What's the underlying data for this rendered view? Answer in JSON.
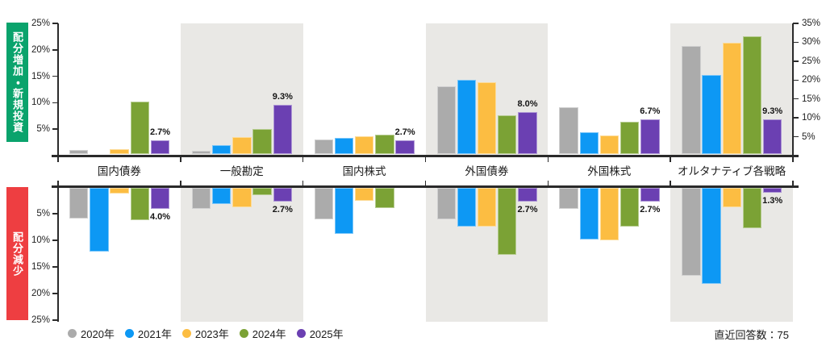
{
  "labels": {
    "increase": "配分増加・新規投資",
    "decrease": "配分減少"
  },
  "note": "直近回答数：75",
  "chart_data": {
    "type": "bar",
    "title": "",
    "panels": [
      {
        "id": "increase",
        "label": "配分増加・新規投資",
        "direction": "up",
        "accent": "#0aa36c"
      },
      {
        "id": "decrease",
        "label": "配分減少",
        "direction": "down",
        "accent": "#ee3e41"
      }
    ],
    "series": [
      {
        "name": "2020年",
        "color": "#ababab"
      },
      {
        "name": "2021年",
        "color": "#0d98f4"
      },
      {
        "name": "2023年",
        "color": "#fcbd42"
      },
      {
        "name": "2024年",
        "color": "#7ba235"
      },
      {
        "name": "2025年",
        "color": "#6b40b2"
      }
    ],
    "left_axis": {
      "unit": "%",
      "ticks": [
        5,
        10,
        15,
        20,
        25
      ],
      "max": 25
    },
    "right_axis": {
      "unit": "%",
      "ticks": [
        5,
        10,
        15,
        20,
        25,
        30,
        35
      ],
      "max": 35,
      "applies_to": "オルタナティブ各戦略"
    },
    "legend_position": "bottom-left",
    "categories": [
      {
        "label": "国内債券",
        "shaded": false,
        "axis": "left",
        "increase": [
          0.9,
          null,
          1.0,
          10.0,
          2.7
        ],
        "decrease": [
          5.9,
          12.0,
          1.1,
          6.2,
          4.0
        ],
        "increase_value_label": "2.7%",
        "decrease_value_label": "4.0%"
      },
      {
        "label": "一般勘定",
        "shaded": true,
        "axis": "left",
        "increase": [
          0.7,
          1.8,
          3.3,
          4.8,
          9.3
        ],
        "decrease": [
          4.0,
          3.1,
          3.7,
          1.5,
          2.7
        ],
        "increase_value_label": "9.3%",
        "decrease_value_label": "2.7%"
      },
      {
        "label": "国内株式",
        "shaded": false,
        "axis": "left",
        "increase": [
          2.8,
          3.1,
          3.4,
          3.7,
          2.7
        ],
        "decrease": [
          6.0,
          8.7,
          2.5,
          3.8,
          null
        ],
        "increase_value_label": "2.7%",
        "decrease_value_label": null
      },
      {
        "label": "外国債券",
        "shaded": true,
        "axis": "left",
        "increase": [
          12.9,
          14.1,
          13.6,
          7.4,
          8.0
        ],
        "decrease": [
          6.0,
          7.4,
          7.4,
          12.6,
          2.7
        ],
        "increase_value_label": "8.0%",
        "decrease_value_label": "2.7%"
      },
      {
        "label": "外国株式",
        "shaded": false,
        "axis": "left",
        "increase": [
          8.9,
          4.2,
          3.6,
          6.1,
          6.7
        ],
        "decrease": [
          4.0,
          9.8,
          9.9,
          7.4,
          2.7
        ],
        "increase_value_label": "6.7%",
        "decrease_value_label": "2.7%"
      },
      {
        "label": "オルタナティブ各戦略",
        "shaded": true,
        "axis": "right",
        "increase": [
          28.8,
          21.0,
          29.6,
          31.3,
          9.3
        ],
        "decrease": [
          23.3,
          25.3,
          5.3,
          10.8,
          1.3
        ],
        "increase_value_label": "9.3%",
        "decrease_value_label": "1.3%"
      }
    ]
  }
}
